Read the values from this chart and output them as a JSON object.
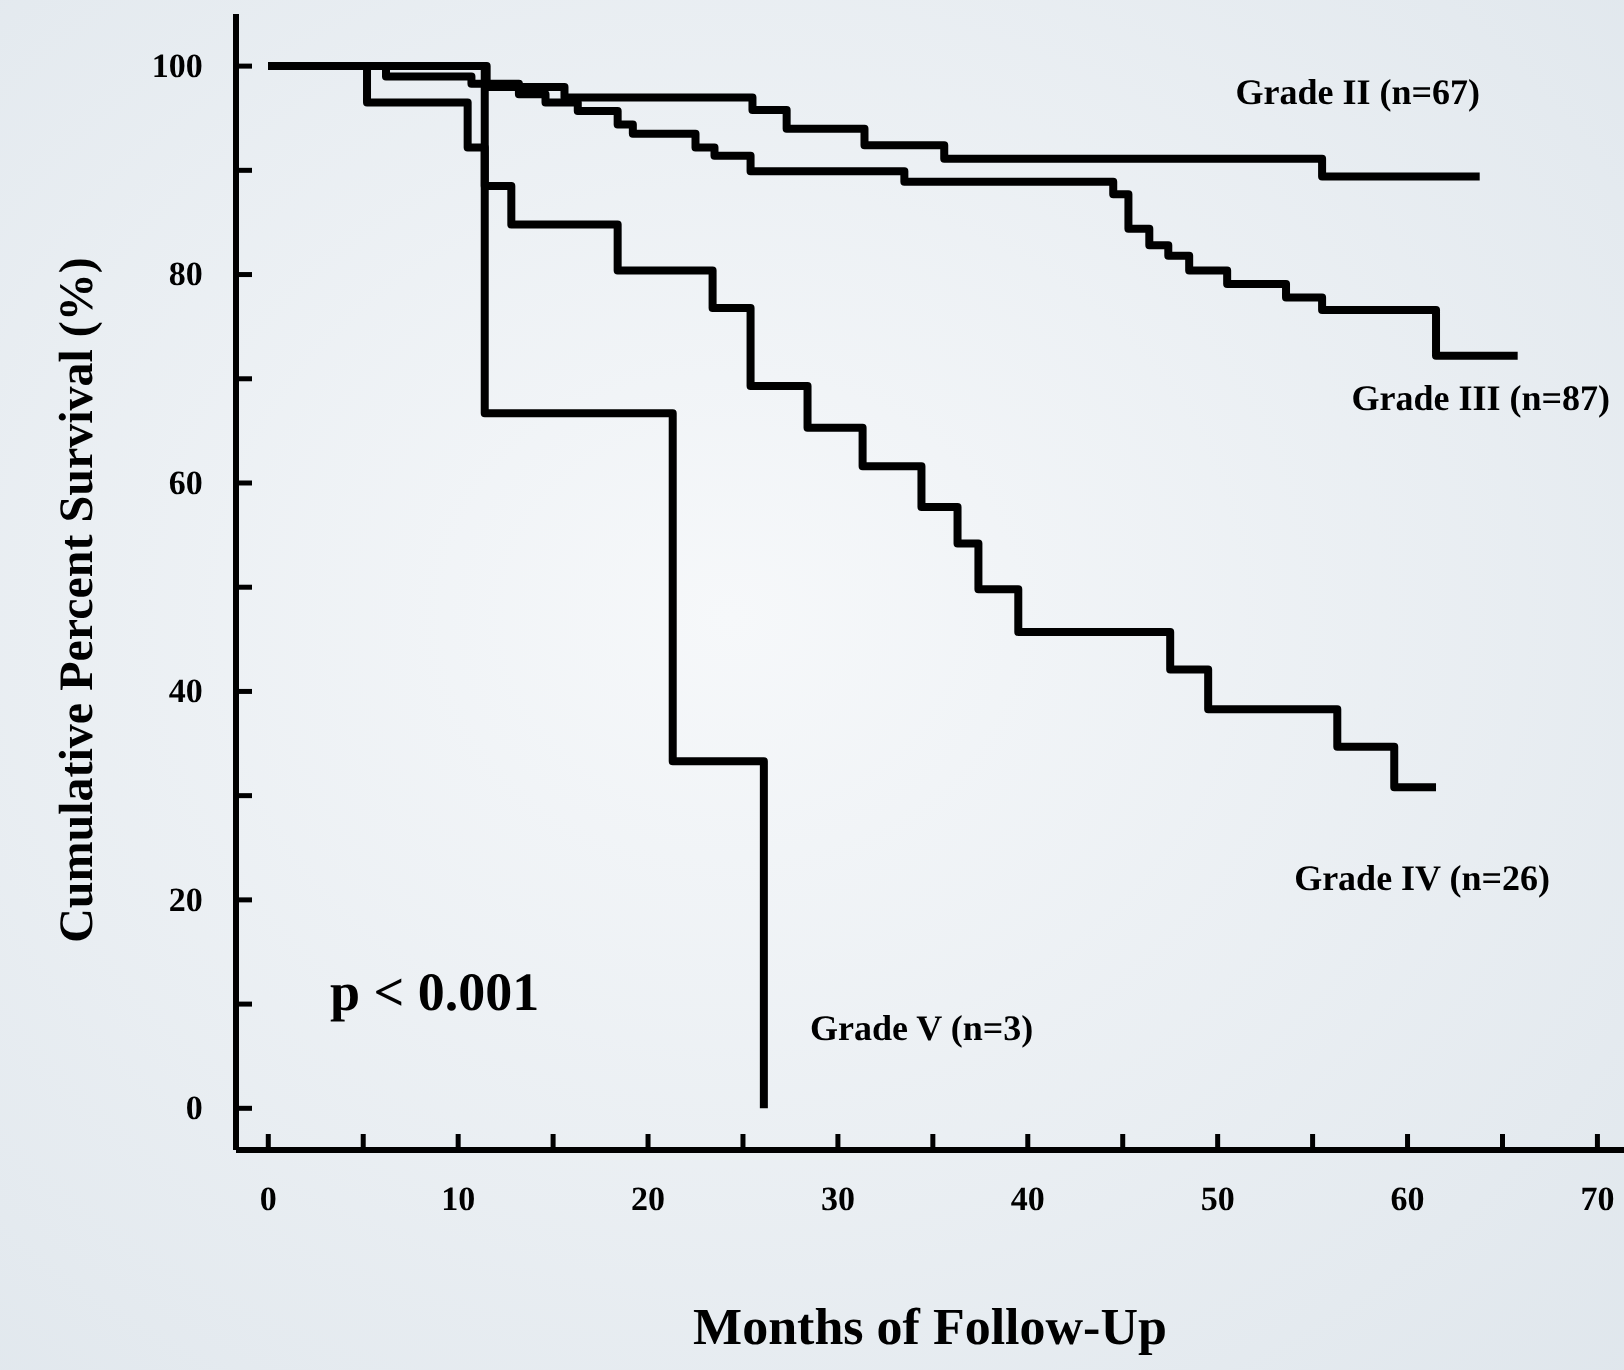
{
  "chart_data": {
    "type": "step",
    "xlabel": "Months of Follow-Up",
    "ylabel": "Cumulative Percent Survival (%)",
    "xlim": [
      -1.7,
      71.4
    ],
    "ylim": [
      -4,
      105
    ],
    "xticks": [
      0,
      {
        "value": 5,
        "label": null
      },
      10,
      {
        "value": 15,
        "label": null
      },
      20,
      {
        "value": 25,
        "label": null
      },
      30,
      {
        "value": 35,
        "label": null
      },
      40,
      {
        "value": 45,
        "label": null
      },
      50,
      {
        "value": 55,
        "label": null
      },
      60,
      {
        "value": 65,
        "label": null
      },
      70
    ],
    "yticks": [
      0,
      {
        "value": 10,
        "label": null
      },
      20,
      {
        "value": 30,
        "label": null
      },
      40,
      {
        "value": 50,
        "label": null
      },
      60,
      {
        "value": 70,
        "label": null
      },
      80,
      {
        "value": 90,
        "label": null
      },
      100
    ],
    "grid": false,
    "legend": false,
    "marker": "none",
    "line_style": "solid",
    "annotations": [
      "p < 0.001"
    ],
    "series": [
      {
        "name": "Grade II (n=67)",
        "color": "#000000",
        "x": [
          0,
          11.5,
          15.6,
          25.5,
          27.3,
          31.4,
          35.6,
          55.5,
          63.8
        ],
        "values": [
          100,
          98,
          97,
          95.8,
          94,
          92.4,
          91.1,
          89.4,
          89.4
        ]
      },
      {
        "name": "Grade III (n=87)",
        "color": "#000000",
        "x": [
          0,
          6.2,
          10.7,
          13.2,
          14.6,
          16.3,
          18.4,
          19.2,
          22.5,
          23.5,
          25.4,
          33.5,
          44.5,
          45.3,
          46.4,
          47.4,
          48.5,
          50.5,
          53.6,
          55.5,
          61.5,
          65.8
        ],
        "values": [
          100,
          99,
          98.3,
          97.3,
          96.5,
          95.7,
          94.4,
          93.5,
          92.2,
          91.4,
          89.9,
          88.9,
          87.7,
          84.4,
          82.8,
          81.8,
          80.4,
          79.1,
          77.8,
          76.6,
          72.2,
          72.2
        ]
      },
      {
        "name": "Grade IV (n=26)",
        "color": "#000000",
        "x": [
          0,
          5.2,
          10.5,
          11.4,
          12.8,
          18.4,
          23.4,
          25.4,
          28.4,
          31.3,
          34.4,
          36.3,
          37.4,
          39.5,
          47.5,
          49.5,
          56.3,
          59.3,
          61.5
        ],
        "values": [
          100,
          96.5,
          92.2,
          88.5,
          84.8,
          80.4,
          76.8,
          69.3,
          65.3,
          61.6,
          57.7,
          54.2,
          49.8,
          45.7,
          42.1,
          38.3,
          34.7,
          30.8,
          30.8
        ]
      },
      {
        "name": "Grade V (n=3)",
        "color": "#000000",
        "x": [
          0,
          11.4,
          21.3,
          26.1
        ],
        "values": [
          100,
          66.7,
          33.3,
          0
        ]
      }
    ]
  }
}
